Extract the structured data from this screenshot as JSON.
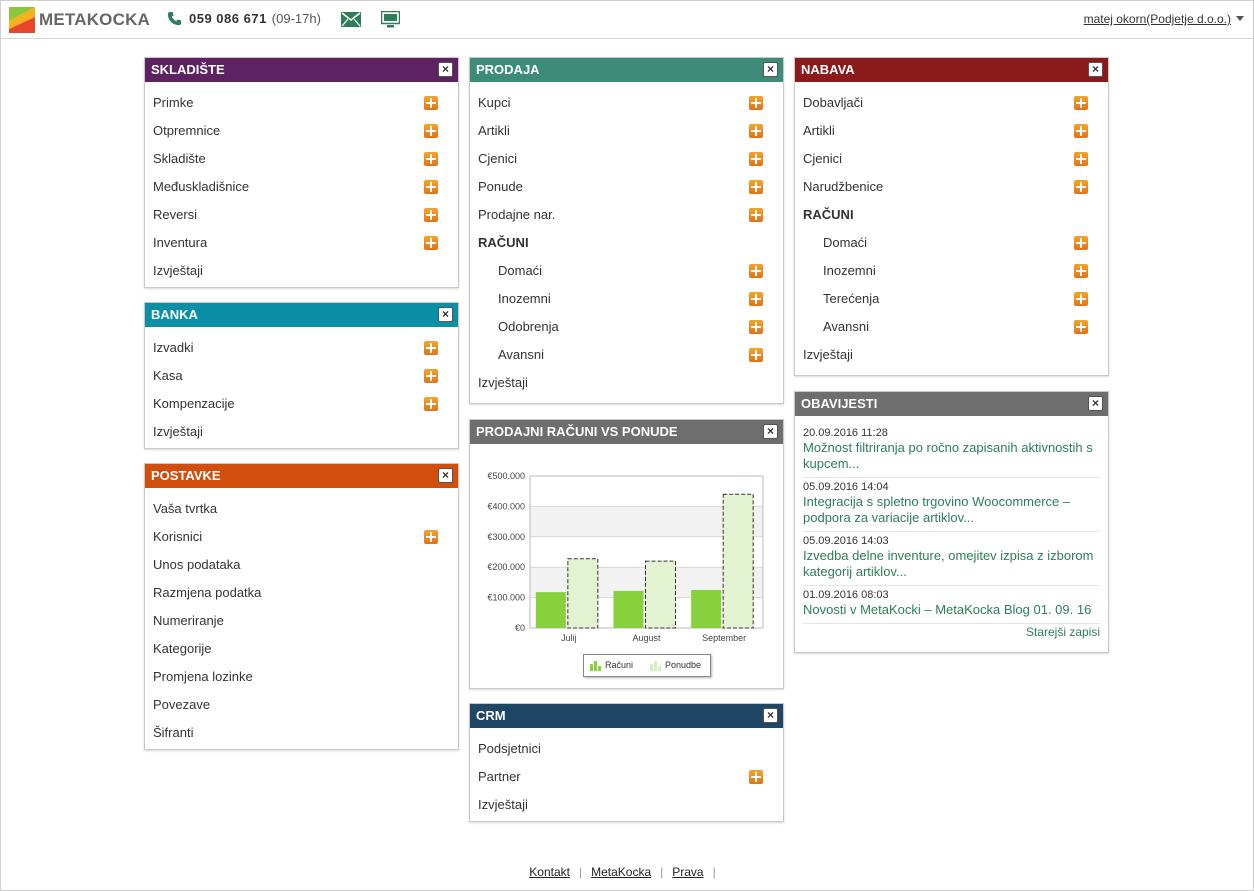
{
  "header": {
    "logo_text": "METAKOCKA",
    "phone": "059 086 671",
    "hours": "(09-17h)",
    "user": "matej okorn(Podjetje d.o.o.)"
  },
  "skladiste": {
    "title": "SKLADIŠTE",
    "color": "#5e2262",
    "items": [
      "Primke",
      "Otpremnice",
      "Skladište",
      "Međuskladišnice",
      "Reversi",
      "Inventura",
      "Izvještaji"
    ]
  },
  "banka": {
    "title": "BANKA",
    "color": "#0a8fa6",
    "items": [
      "Izvadki",
      "Kasa",
      "Kompenzacije",
      "Izvještaji"
    ]
  },
  "postavke": {
    "title": "POSTAVKE",
    "color": "#d24e0c",
    "items": [
      "Vaša tvrtka",
      "Korisnici",
      "Unos podataka",
      "Razmjena podatka",
      "Numeriranje",
      "Kategorije",
      "Promjena lozinke",
      "Povezave",
      "Šifranti"
    ]
  },
  "prodaja": {
    "title": "PRODAJA",
    "color": "#3d8c7a",
    "items": [
      "Kupci",
      "Artikli",
      "Cjenici",
      "Ponude",
      "Prodajne nar."
    ],
    "section": "RAČUNI",
    "sub_items": [
      "Domaći",
      "Inozemni",
      "Odobrenja",
      "Avansni"
    ],
    "report": "Izvještaji"
  },
  "nabava": {
    "title": "NABAVA",
    "color": "#8c1a1a",
    "items": [
      "Dobavljači",
      "Artikli",
      "Cjenici",
      "Narudžbenice"
    ],
    "section": "RAČUNI",
    "sub_items": [
      "Domaći",
      "Inozemni",
      "Terećenja",
      "Avansni"
    ],
    "report": "Izvještaji"
  },
  "chart_widget": {
    "title": "PRODAJNI RAČUNI VS PONUDE",
    "color": "#6e6e6e"
  },
  "crm": {
    "title": "CRM",
    "color": "#1f4664",
    "items": [
      "Podsjetnici",
      "Partner",
      "Izvještaji"
    ]
  },
  "obavijesti": {
    "title": "OBAVIJESTI",
    "color": "#6e6e6e",
    "news": [
      {
        "date": "20.09.2016 11:28",
        "title": "Možnost filtriranja po ročno zapisanih aktivnostih s kupcem..."
      },
      {
        "date": "05.09.2016 14:04",
        "title": "Integracija s spletno trgovino Woocommerce – podpora za variacije artiklov..."
      },
      {
        "date": "05.09.2016 14:03",
        "title": "Izvedba delne inventure, omejitev izpisa z izborom kategorij artiklov..."
      },
      {
        "date": "01.09.2016 08:03",
        "title": "Novosti v MetaKocki – MetaKocka Blog 01. 09. 16"
      }
    ],
    "older": "Starejši zapisi"
  },
  "footer": {
    "links": [
      "Kontakt",
      "MetaKocka",
      "Prava"
    ]
  },
  "chart_data": {
    "type": "bar",
    "categories": [
      "Julij",
      "August",
      "September"
    ],
    "series": [
      {
        "name": "Računi",
        "values": [
          118000,
          122000,
          125000
        ],
        "color": "#86d13c"
      },
      {
        "name": "Ponudbe",
        "values": [
          228000,
          220000,
          440000
        ],
        "color": "#e3f3d2"
      }
    ],
    "ylim": [
      0,
      500000
    ],
    "yticks": [
      "€0",
      "€100.000",
      "€200.000",
      "€300.000",
      "€400.000",
      "€500.000"
    ],
    "grid": true,
    "legend_position": "bottom"
  }
}
